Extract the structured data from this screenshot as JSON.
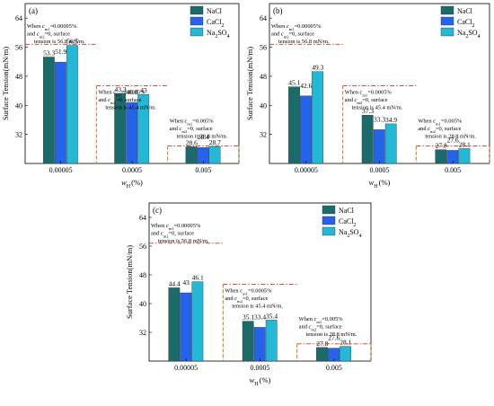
{
  "figure": {
    "colors": {
      "NaCl": "#1b6b6b",
      "CaCl2": "#2563eb",
      "Na2SO4": "#22b8d6",
      "threshold": "#c0392b",
      "region": "#e07b39"
    }
  },
  "chart_data": [
    {
      "type": "bar",
      "panel": "(a)",
      "categories": [
        "0.00005",
        "0.0005",
        "0.005"
      ],
      "series": [
        {
          "name": "NaCl",
          "values": [
            53.3,
            43.3,
            28.6
          ]
        },
        {
          "name": "CaCl2",
          "values": [
            51.9,
            40.8,
            28.4
          ]
        },
        {
          "name": "Na2SO4",
          "values": [
            56.5,
            43.0,
            28.7
          ]
        }
      ],
      "ylabel": "Surface Tension(mN/m)",
      "xlabel": "wH(%)",
      "ylim": [
        24,
        68
      ],
      "yticks": [
        32,
        40,
        48,
        56,
        64
      ],
      "thresholds": [
        56.8,
        45.4,
        28.8
      ],
      "annotations": [
        [
          "When cm1=0.00005%",
          "and cm2=0, surface",
          "tension is 56.8 mN/m."
        ],
        [
          "When cm1=0.0005%",
          "and cm2=0, surface",
          "tension is 45.4 mN/m."
        ],
        [
          "When cm1=0.005%",
          "and cm2=0, surface",
          "tension is 28.8 mN/m."
        ]
      ],
      "legend": "top-right"
    },
    {
      "type": "bar",
      "panel": "(b)",
      "categories": [
        "0.00005",
        "0.0005",
        "0.005"
      ],
      "series": [
        {
          "name": "NaCl",
          "values": [
            45.1,
            37.3,
            27.8
          ]
        },
        {
          "name": "CaCl2",
          "values": [
            42.6,
            33.3,
            27.6
          ]
        },
        {
          "name": "Na2SO4",
          "values": [
            49.3,
            34.9,
            28.1
          ]
        }
      ],
      "ylabel": "Surface Tension(mN/m)",
      "xlabel": "wH(%)",
      "ylim": [
        24,
        68
      ],
      "yticks": [
        32,
        40,
        48,
        56,
        64
      ],
      "thresholds": [
        56.8,
        45.4,
        28.8
      ],
      "annotations": [
        [
          "When cm1=0.00005%",
          "and cm2=0, surface",
          "tension is 56.8 mN/m."
        ],
        [
          "When cm1=0.0005%",
          "and cm2=0, surface",
          "tension is 45.4 mN/m."
        ],
        [
          "When cm1=0.005%",
          "and cm2=0, surface",
          "tension is 28.8 mN/m."
        ]
      ],
      "legend": "top-right"
    },
    {
      "type": "bar",
      "panel": "(c)",
      "categories": [
        "0.00005",
        "0.0005",
        "0.005"
      ],
      "series": [
        {
          "name": "NaCl",
          "values": [
            44.4,
            35.1,
            27.8
          ]
        },
        {
          "name": "CaCl2",
          "values": [
            43.0,
            33.4,
            27.6
          ]
        },
        {
          "name": "Na2SO4",
          "values": [
            46.1,
            35.4,
            28.1
          ]
        }
      ],
      "ylabel": "Surface Tension(mN/m)",
      "xlabel": "wH(%)",
      "ylim": [
        24,
        68
      ],
      "yticks": [
        32,
        40,
        48,
        56,
        64
      ],
      "thresholds": [
        56.8,
        45.4,
        28.8
      ],
      "annotations": [
        [
          "When cm1=0.00005%",
          "and cm2=0, surface",
          "tension is 56.8 mN/m."
        ],
        [
          "When cm1=0.0005%",
          "and cm2=0, surface",
          "tension is 45.4 mN/m."
        ],
        [
          "When cm1=0.005%",
          "and cm2=0, surface",
          "tension is 28.8 mN/m."
        ]
      ],
      "legend": "top-right"
    }
  ]
}
